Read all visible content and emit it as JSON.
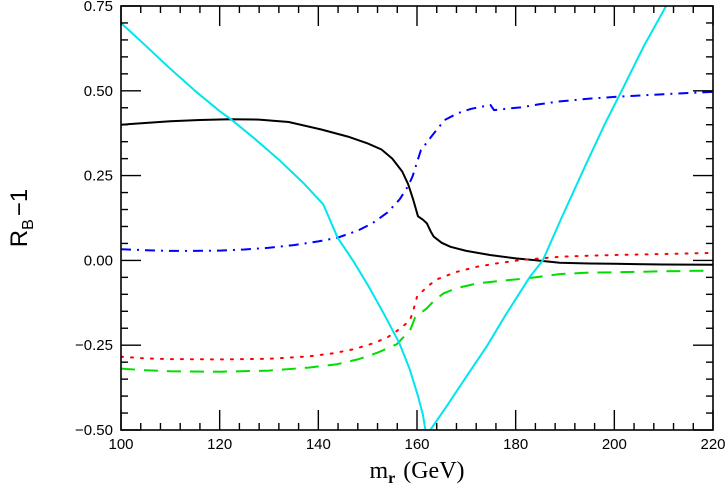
{
  "chart_data": {
    "type": "line",
    "title": "",
    "xlabel": "m_r (GeV)",
    "xlabel_main": "m",
    "xlabel_sub": "r",
    "xlabel_unit": "(GeV)",
    "ylabel": "R_B − 1",
    "ylabel_main": "R",
    "ylabel_sub": "B",
    "ylabel_rest": "−1",
    "xlim": [
      100,
      220
    ],
    "ylim": [
      -0.5,
      0.75
    ],
    "grid": false,
    "legend": "none",
    "x_ticks": [
      {
        "value": 100,
        "label": "100"
      },
      {
        "value": 120,
        "label": "120"
      },
      {
        "value": 140,
        "label": "140"
      },
      {
        "value": 160,
        "label": "160"
      },
      {
        "value": 180,
        "label": "180"
      },
      {
        "value": 200,
        "label": "200"
      },
      {
        "value": 220,
        "label": "220"
      }
    ],
    "y_ticks": [
      {
        "value": 0.75,
        "label": "0.75"
      },
      {
        "value": 0.5,
        "label": "0.50"
      },
      {
        "value": 0.25,
        "label": "0.25"
      },
      {
        "value": 0.0,
        "label": "0.00"
      },
      {
        "value": -0.25,
        "label": "−0.25"
      },
      {
        "value": -0.5,
        "label": "−0.50"
      }
    ],
    "x_minor_step": 4,
    "y_minor_step": 0.05,
    "series": [
      {
        "name": "black solid",
        "color": "#000000",
        "style": "solid",
        "points": [
          [
            100,
            0.4
          ],
          [
            110,
            0.41
          ],
          [
            116,
            0.414
          ],
          [
            122,
            0.416
          ],
          [
            128,
            0.415
          ],
          [
            134,
            0.408
          ],
          [
            140.6,
            0.386
          ],
          [
            146,
            0.365
          ],
          [
            150,
            0.345
          ],
          [
            152.8,
            0.327
          ],
          [
            155,
            0.3
          ],
          [
            157,
            0.262
          ],
          [
            158.2,
            0.225
          ],
          [
            159.2,
            0.18
          ],
          [
            160.2,
            0.13
          ],
          [
            161.2,
            0.12
          ],
          [
            162,
            0.109
          ],
          [
            162.8,
            0.085
          ],
          [
            163.4,
            0.07
          ],
          [
            165,
            0.052
          ],
          [
            166.8,
            0.04
          ],
          [
            170,
            0.028
          ],
          [
            174.8,
            0.016
          ],
          [
            180,
            0.006
          ],
          [
            184.3,
            0.0
          ],
          [
            188.9,
            -0.007
          ],
          [
            195,
            -0.009
          ],
          [
            200,
            -0.01
          ],
          [
            210,
            -0.012
          ],
          [
            220,
            -0.013
          ]
        ]
      },
      {
        "name": "blue dash-dot",
        "color": "#0000ff",
        "style": "dashdot",
        "points": [
          [
            100,
            0.033
          ],
          [
            105,
            0.03
          ],
          [
            110,
            0.028
          ],
          [
            115,
            0.028
          ],
          [
            120,
            0.029
          ],
          [
            125,
            0.032
          ],
          [
            130,
            0.037
          ],
          [
            135,
            0.045
          ],
          [
            140,
            0.056
          ],
          [
            143.9,
            0.067
          ],
          [
            148,
            0.088
          ],
          [
            151,
            0.11
          ],
          [
            154,
            0.141
          ],
          [
            156.5,
            0.18
          ],
          [
            158.2,
            0.219
          ],
          [
            159.1,
            0.248
          ],
          [
            160.6,
            0.317
          ],
          [
            160.8,
            0.325
          ],
          [
            162.9,
            0.365
          ],
          [
            165.6,
            0.414
          ],
          [
            168.3,
            0.434
          ],
          [
            171,
            0.447
          ],
          [
            174.9,
            0.458
          ],
          [
            175.6,
            0.443
          ],
          [
            178,
            0.447
          ],
          [
            181,
            0.451
          ],
          [
            184.6,
            0.46
          ],
          [
            188.4,
            0.468
          ],
          [
            195,
            0.477
          ],
          [
            201,
            0.483
          ],
          [
            210,
            0.49
          ],
          [
            220,
            0.497
          ]
        ]
      },
      {
        "name": "red dotted",
        "color": "#ff0000",
        "style": "dotted",
        "points": [
          [
            100,
            -0.284
          ],
          [
            105,
            -0.289
          ],
          [
            110,
            -0.291
          ],
          [
            120.1,
            -0.292
          ],
          [
            130,
            -0.29
          ],
          [
            138,
            -0.283
          ],
          [
            143,
            -0.274
          ],
          [
            147.1,
            -0.262
          ],
          [
            151,
            -0.245
          ],
          [
            154,
            -0.227
          ],
          [
            155.9,
            -0.208
          ],
          [
            157.5,
            -0.19
          ],
          [
            158.6,
            -0.176
          ],
          [
            159.4,
            -0.14
          ],
          [
            160,
            -0.107
          ],
          [
            162,
            -0.078
          ],
          [
            164,
            -0.056
          ],
          [
            168,
            -0.034
          ],
          [
            172.1,
            -0.019
          ],
          [
            176,
            -0.009
          ],
          [
            181,
            0.001
          ],
          [
            185,
            0.006
          ],
          [
            189.1,
            0.011
          ],
          [
            195,
            0.014
          ],
          [
            200,
            0.016
          ],
          [
            210,
            0.019
          ],
          [
            220,
            0.022
          ]
        ]
      },
      {
        "name": "green dashed",
        "color": "#00dd00",
        "style": "dashed",
        "points": [
          [
            100,
            -0.319
          ],
          [
            105,
            -0.324
          ],
          [
            110,
            -0.327
          ],
          [
            120.1,
            -0.328
          ],
          [
            130,
            -0.325
          ],
          [
            138,
            -0.316
          ],
          [
            143.8,
            -0.306
          ],
          [
            148,
            -0.292
          ],
          [
            152,
            -0.272
          ],
          [
            155.9,
            -0.247
          ],
          [
            158.6,
            -0.206
          ],
          [
            159.6,
            -0.169
          ],
          [
            160.5,
            -0.158
          ],
          [
            162,
            -0.141
          ],
          [
            163.5,
            -0.118
          ],
          [
            165.4,
            -0.097
          ],
          [
            168,
            -0.082
          ],
          [
            172.1,
            -0.068
          ],
          [
            177,
            -0.06
          ],
          [
            182.3,
            -0.053
          ],
          [
            189.1,
            -0.04
          ],
          [
            195,
            -0.036
          ],
          [
            200,
            -0.035
          ],
          [
            210,
            -0.032
          ],
          [
            220,
            -0.03
          ]
        ]
      },
      {
        "name": "cyan solid",
        "color": "#00e5ee",
        "style": "solid",
        "points": [
          [
            100,
            0.7
          ],
          [
            105,
            0.633
          ],
          [
            110,
            0.565
          ],
          [
            115,
            0.5
          ],
          [
            120,
            0.44
          ],
          [
            122.3,
            0.416
          ],
          [
            127,
            0.36
          ],
          [
            132,
            0.297
          ],
          [
            137,
            0.228
          ],
          [
            141,
            0.165
          ],
          [
            143.9,
            0.067
          ],
          [
            147,
            0.0
          ],
          [
            150,
            -0.072
          ],
          [
            153,
            -0.15
          ],
          [
            156.4,
            -0.243
          ],
          [
            158.5,
            -0.32
          ],
          [
            160.2,
            -0.4
          ],
          [
            161.2,
            -0.455
          ],
          [
            161.7,
            -0.5
          ]
        ],
        "points_b": [
          [
            162.7,
            -0.5
          ],
          [
            166,
            -0.43
          ],
          [
            170,
            -0.343
          ],
          [
            174.1,
            -0.254
          ],
          [
            178,
            -0.16
          ],
          [
            182.9,
            -0.048
          ],
          [
            185.5,
            0.0
          ],
          [
            189.1,
            0.119
          ],
          [
            194,
            0.275
          ],
          [
            198,
            0.4
          ],
          [
            202,
            0.515
          ],
          [
            206,
            0.632
          ],
          [
            210.5,
            0.75
          ]
        ]
      }
    ]
  }
}
